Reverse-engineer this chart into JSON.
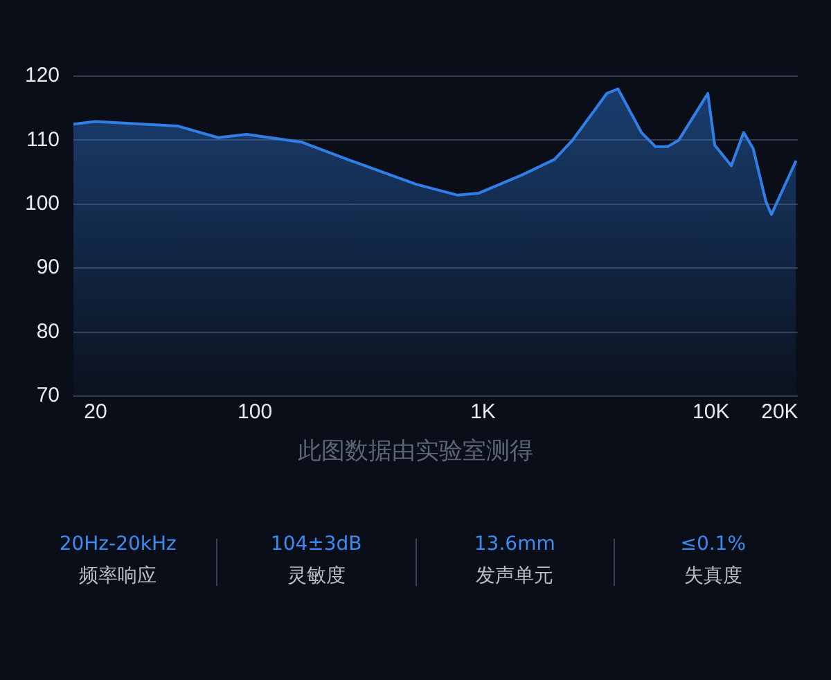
{
  "chart_data": {
    "type": "area",
    "log": "x",
    "grid": "y",
    "x": [
      16,
      20,
      46,
      69,
      92,
      160,
      254,
      510,
      774,
      955,
      1490,
      2060,
      2470,
      3490,
      3910,
      4950,
      5700,
      6460,
      7220,
      9680,
      10380,
      12270,
      13900,
      15300,
      17400,
      18400,
      23600
    ],
    "series": [
      {
        "color": "#2f7fe6",
        "values": [
          112.5,
          112.9,
          112.2,
          110.4,
          110.9,
          109.7,
          107,
          103.1,
          101.4,
          101.7,
          104.6,
          107,
          110,
          117.3,
          118,
          111.2,
          109,
          109,
          110,
          117.3,
          109.2,
          106,
          111.2,
          108.7,
          100.4,
          98.4,
          106.8
        ]
      }
    ],
    "xlim": [
      16,
      24000
    ],
    "xticks": [
      {
        "value": 20,
        "label": "20"
      },
      {
        "value": 100,
        "label": "100"
      },
      {
        "value": 1000,
        "label": "1K"
      },
      {
        "value": 10000,
        "label": "10K"
      },
      {
        "value": 20000,
        "label": "20K"
      }
    ],
    "ylim": [
      70,
      120
    ],
    "yticks": [
      70,
      80,
      90,
      100,
      110,
      120
    ],
    "annotations": [
      "此图数据由实验室测得",
      "20Hz-20kHz",
      "频率响应",
      "104±3dB",
      "灵敏度",
      "13.6mm",
      "发声单元",
      "≤0.1%",
      "失真度"
    ]
  }
}
